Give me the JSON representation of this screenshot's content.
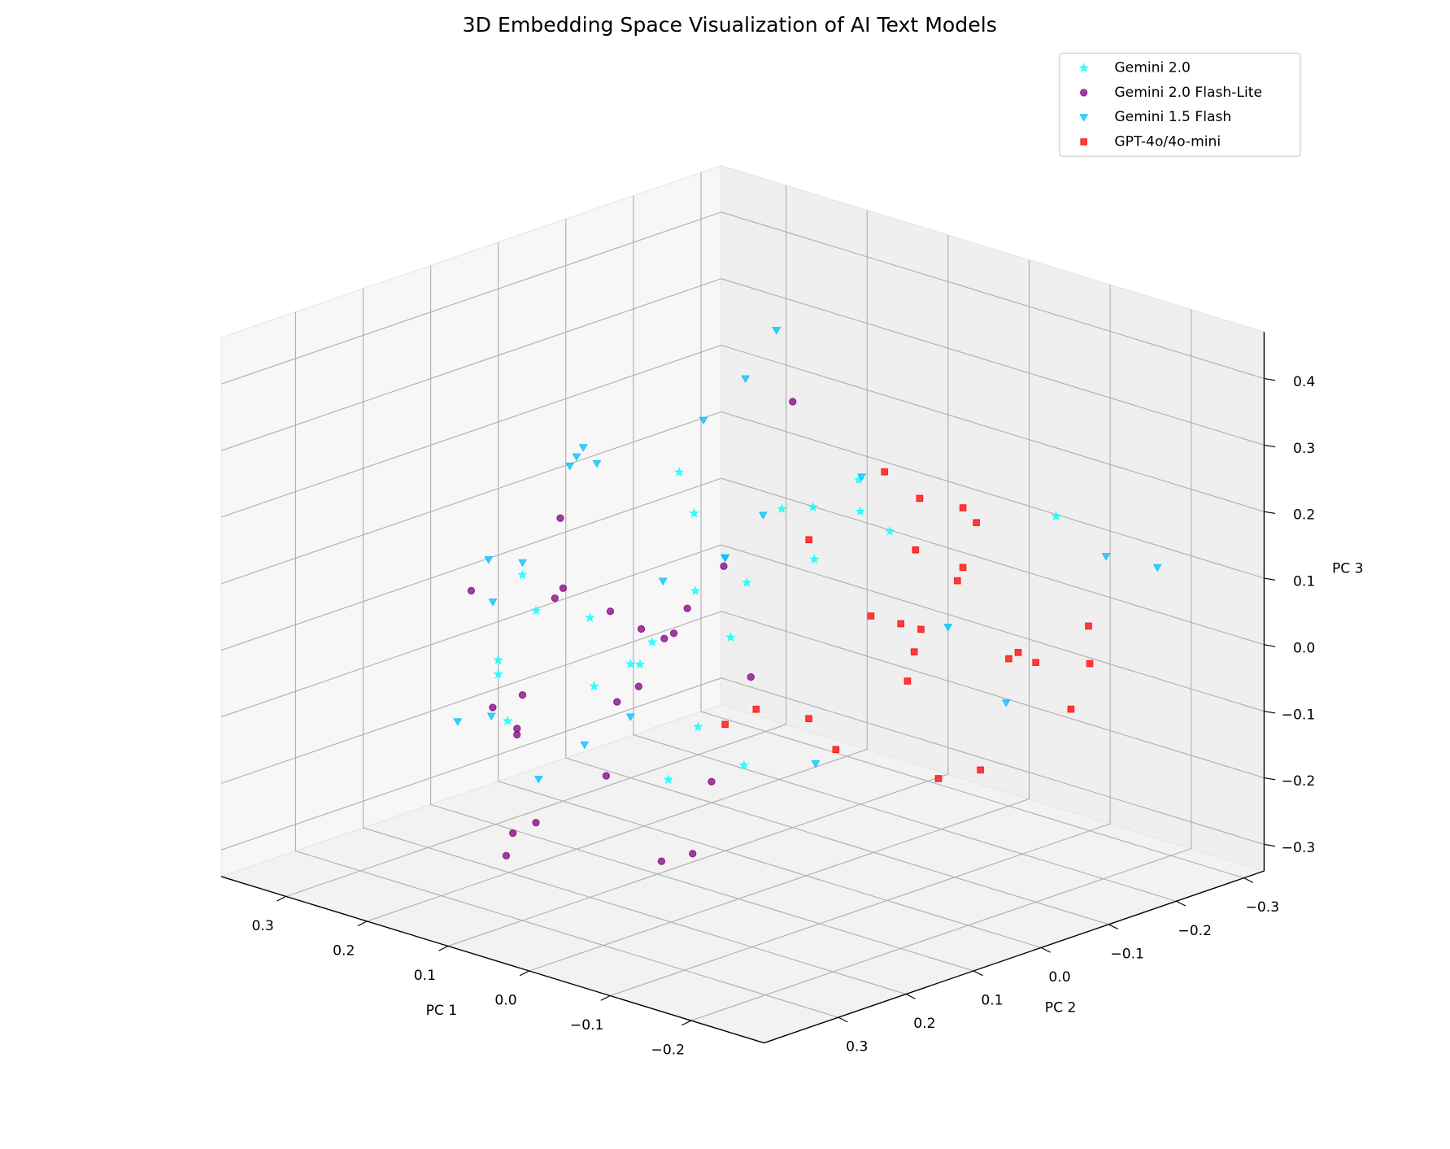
{
  "chart_data": {
    "type": "scatter3d",
    "title": "3D Embedding Space Visualization of AI Text Models",
    "xlabel": "PC 1",
    "ylabel": "PC 2",
    "zlabel": "PC 3",
    "xlim": [
      -0.29,
      0.38
    ],
    "ylim": [
      -0.33,
      0.41
    ],
    "zlim": [
      -0.34,
      0.47
    ],
    "xticks": [
      {
        "value": -0.2,
        "label": "−0.2"
      },
      {
        "value": -0.1,
        "label": "−0.1"
      },
      {
        "value": 0.0,
        "label": "0.0"
      },
      0.1,
      0.2,
      0.3
    ],
    "yticks": [
      {
        "value": -0.3,
        "label": "−0.3"
      },
      {
        "value": -0.2,
        "label": "−0.2"
      },
      {
        "value": -0.1,
        "label": "−0.1"
      },
      {
        "value": 0.0,
        "label": "0.0"
      },
      0.1,
      0.2,
      0.3
    ],
    "zticks": [
      {
        "value": -0.3,
        "label": "−0.3"
      },
      {
        "value": -0.2,
        "label": "−0.2"
      },
      {
        "value": -0.1,
        "label": "−0.1"
      },
      {
        "value": 0.0,
        "label": "0.0"
      },
      0.1,
      0.2,
      0.3,
      0.4
    ],
    "grid": true,
    "legend": "upper right",
    "series": [
      {
        "name": "Gemini 2.0",
        "color": "#00ffff",
        "marker": "star",
        "x": [
          0.12,
          0.05,
          0.18,
          0.08,
          0.15,
          -0.02,
          0.1,
          0.22,
          0.03,
          0.14,
          0.07,
          0.2,
          0.11,
          -0.05,
          0.16,
          0.09,
          0.25,
          0.01,
          0.13,
          0.06,
          0.19,
          0.04,
          0.1,
          -0.1,
          0.28
        ],
        "y": [
          0.02,
          0.1,
          -0.05,
          0.15,
          0.08,
          -0.1,
          0.2,
          0.05,
          0.0,
          -0.08,
          0.12,
          0.18,
          -0.02,
          0.05,
          0.25,
          -0.12,
          0.1,
          0.08,
          0.3,
          -0.15,
          0.0,
          0.14,
          -0.2,
          -0.25,
          0.12
        ],
        "z": [
          0.05,
          -0.1,
          0.12,
          0.0,
          -0.05,
          0.15,
          0.08,
          -0.12,
          0.2,
          0.02,
          -0.18,
          0.1,
          -0.03,
          0.25,
          -0.08,
          0.06,
          0.0,
          -0.15,
          0.04,
          0.18,
          -0.06,
          0.3,
          0.1,
          0.15,
          -0.1
        ]
      },
      {
        "name": "Gemini 2.0 Flash-Lite",
        "color": "#800080",
        "marker": "circle",
        "x": [
          0.15,
          0.08,
          0.2,
          0.1,
          0.05,
          0.18,
          0.12,
          0.25,
          0.02,
          0.14,
          0.3,
          0.07,
          0.16,
          0.11,
          -0.03,
          0.22,
          0.09,
          0.13,
          0.04,
          0.19,
          0.06,
          0.17,
          0.0,
          0.1,
          0.33
        ],
        "y": [
          0.1,
          0.2,
          0.05,
          0.28,
          0.15,
          -0.02,
          0.3,
          0.12,
          0.22,
          0.08,
          0.0,
          0.35,
          0.18,
          -0.05,
          0.25,
          0.1,
          0.32,
          0.02,
          0.12,
          0.2,
          0.05,
          0.26,
          0.14,
          -0.1,
          0.1
        ],
        "z": [
          -0.1,
          -0.15,
          0.0,
          -0.2,
          0.05,
          -0.05,
          -0.25,
          -0.12,
          0.1,
          -0.08,
          -0.02,
          -0.18,
          0.08,
          -0.1,
          -0.22,
          0.15,
          -0.05,
          0.02,
          -0.28,
          -0.12,
          0.12,
          -0.06,
          -0.15,
          0.3,
          0.0
        ]
      },
      {
        "name": "Gemini 1.5 Flash",
        "color": "#00bfff",
        "marker": "triangle_down",
        "x": [
          0.1,
          0.2,
          0.05,
          0.3,
          0.15,
          -0.05,
          0.25,
          0.08,
          0.12,
          0.18,
          0.0,
          0.22,
          0.35,
          0.06,
          0.14,
          -0.12,
          0.28,
          0.1,
          0.03,
          0.16,
          -0.2,
          0.2,
          0.09,
          0.32,
          -0.08
        ],
        "y": [
          0.0,
          0.1,
          0.2,
          -0.05,
          0.15,
          -0.15,
          0.05,
          0.3,
          -0.1,
          0.25,
          0.12,
          -0.2,
          0.0,
          0.08,
          -0.25,
          -0.3,
          0.18,
          0.35,
          -0.05,
          0.02,
          -0.28,
          -0.15,
          0.22,
          0.08,
          -0.2
        ],
        "z": [
          0.1,
          0.25,
          -0.05,
          0.15,
          0.3,
          0.0,
          0.2,
          -0.12,
          0.4,
          -0.08,
          0.18,
          0.05,
          0.0,
          0.35,
          0.12,
          0.08,
          -0.15,
          0.22,
          -0.2,
          0.05,
          0.1,
          0.28,
          -0.1,
          -0.02,
          -0.12
        ]
      },
      {
        "name": "GPT-4o/4o-mini",
        "color": "#ff0000",
        "marker": "square",
        "x": [
          -0.05,
          -0.1,
          0.0,
          -0.15,
          -0.08,
          0.05,
          -0.12,
          -0.02,
          -0.2,
          -0.06,
          0.02,
          -0.14,
          -0.04,
          -0.18,
          0.08,
          -0.09,
          -0.01,
          -0.22,
          -0.07,
          0.04,
          -0.11,
          -0.16,
          -0.03,
          0.1,
          -0.25
        ],
        "y": [
          -0.1,
          -0.05,
          -0.15,
          -0.12,
          0.0,
          -0.2,
          -0.08,
          -0.02,
          -0.1,
          -0.18,
          0.05,
          -0.25,
          -0.12,
          0.02,
          -0.1,
          -0.15,
          -0.22,
          -0.05,
          0.08,
          -0.28,
          -0.03,
          -0.2,
          -0.08,
          0.0,
          -0.12
        ],
        "z": [
          -0.02,
          0.05,
          -0.1,
          0.0,
          0.08,
          -0.05,
          0.12,
          -0.15,
          0.02,
          0.15,
          -0.08,
          0.0,
          0.2,
          -0.12,
          0.1,
          -0.2,
          0.05,
          0.06,
          -0.05,
          0.1,
          0.18,
          -0.1,
          0.25,
          -0.15,
          0.03
        ]
      }
    ]
  }
}
